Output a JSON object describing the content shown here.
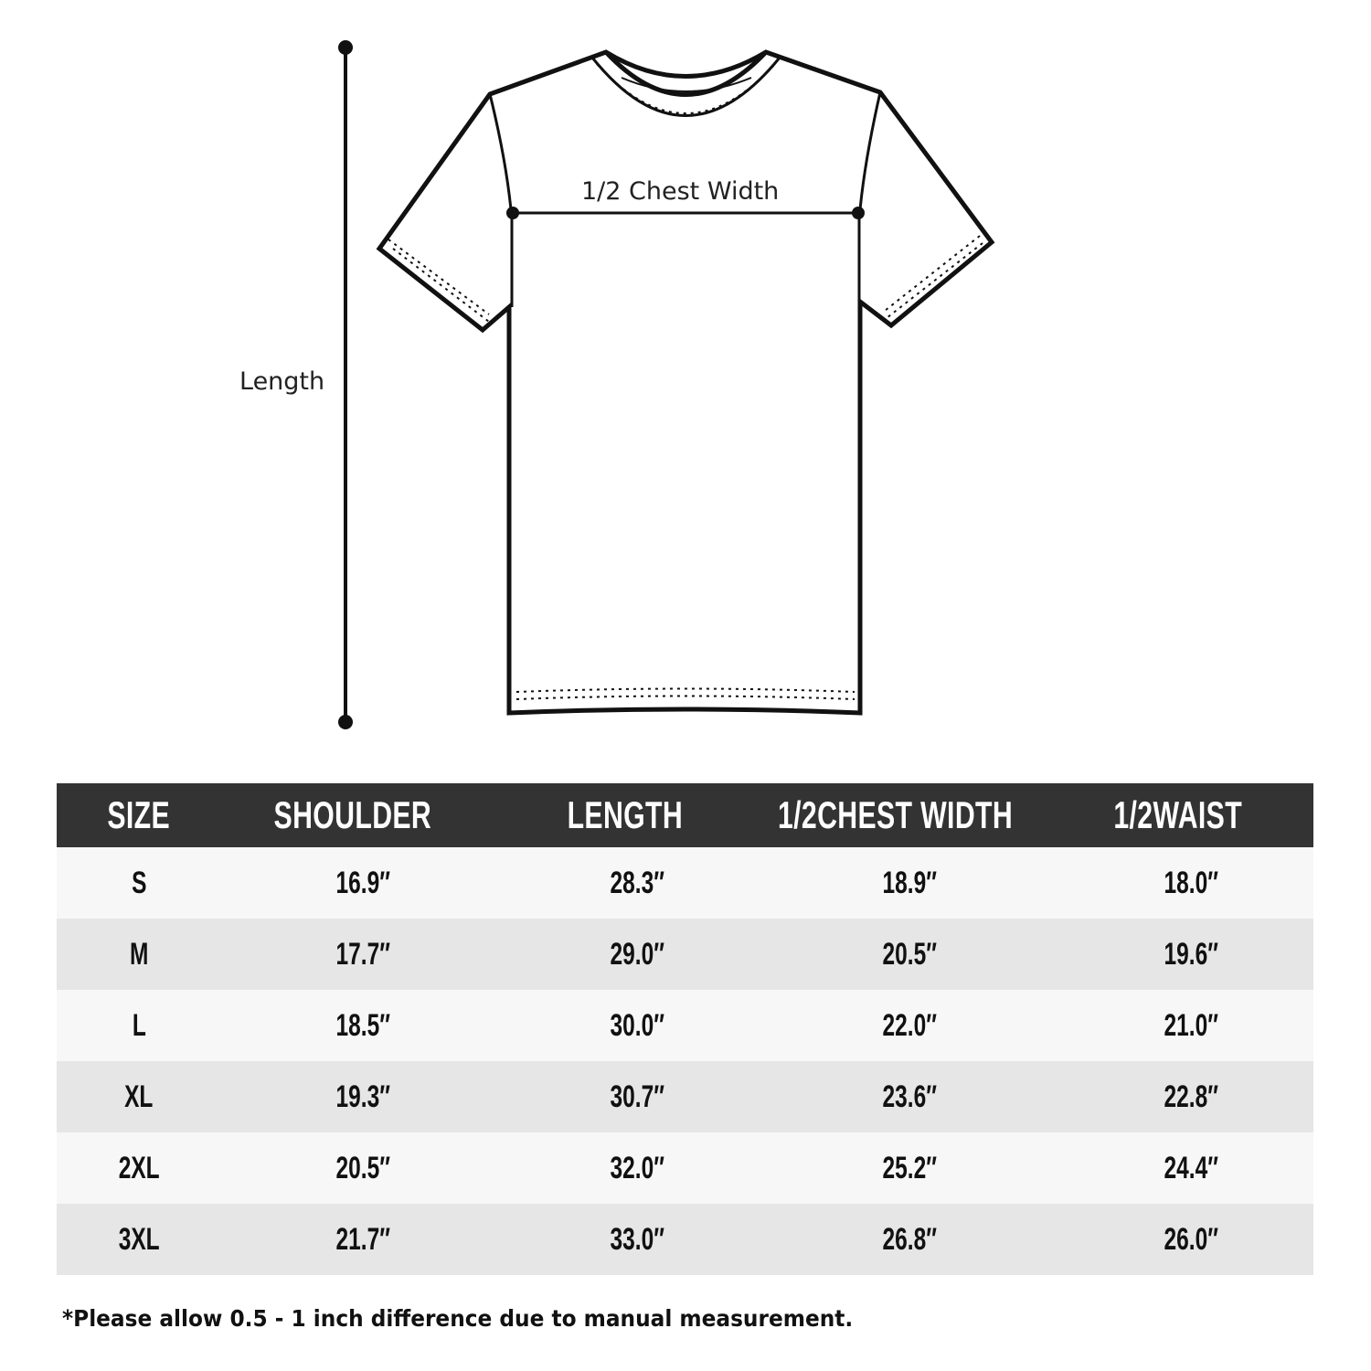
{
  "diagram": {
    "length_label": "Length",
    "chest_label": "1/2 Chest Width"
  },
  "table": {
    "headers": [
      "SIZE",
      "SHOULDER",
      "LENGTH",
      "1/2CHEST WIDTH",
      "1/2WAIST"
    ],
    "rows": [
      [
        "S",
        "16.9″",
        "28.3″",
        "18.9″",
        "18.0″"
      ],
      [
        "M",
        "17.7″",
        "29.0″",
        "20.5″",
        "19.6″"
      ],
      [
        "L",
        "18.5″",
        "30.0″",
        "22.0″",
        "21.0″"
      ],
      [
        "XL",
        "19.3″",
        "30.7″",
        "23.6″",
        "22.8″"
      ],
      [
        "2XL",
        "20.5″",
        "32.0″",
        "25.2″",
        "24.4″"
      ],
      [
        "3XL",
        "21.7″",
        "33.0″",
        "26.8″",
        "26.0″"
      ]
    ]
  },
  "note": "*Please allow 0.5 - 1 inch difference due to manual measurement.",
  "colors": {
    "header_bg": "#333333",
    "row_light": "#f7f7f7",
    "row_dark": "#e6e6e6"
  }
}
